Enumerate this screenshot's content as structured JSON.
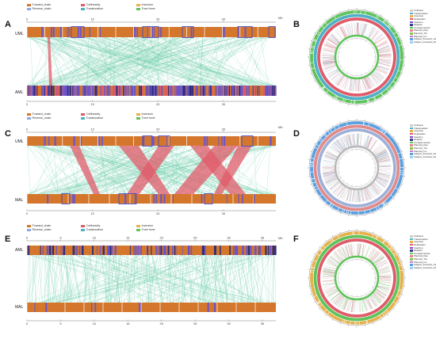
{
  "panels": {
    "A": "A",
    "B": "B",
    "C": "C",
    "D": "D",
    "E": "E",
    "F": "F"
  },
  "legend_items": [
    {
      "label": "Forward_chain",
      "color": "#d4772c"
    },
    {
      "label": "Reverse_chain",
      "color": "#8fa7e0"
    },
    {
      "label": "Collinearity",
      "color": "#e05b6a"
    },
    {
      "label": "Translocation",
      "color": "#4fb0c6"
    },
    {
      "label": "Inversion",
      "color": "#e6b04a"
    },
    {
      "label": "Tran+Inver",
      "color": "#5fc35a"
    }
  ],
  "rows": {
    "A_top": "UML",
    "A_bottom": "AML",
    "C_top": "UML",
    "C_bottom": "MAL",
    "E_top": "AML",
    "E_bottom": "MAL"
  },
  "ticks": {
    "A": [
      "0",
      "10",
      "20",
      "30"
    ],
    "C": [
      "0",
      "10",
      "20",
      "30"
    ],
    "E": [
      "0",
      "5",
      "10",
      "15",
      "20",
      "25",
      "30",
      "35"
    ]
  },
  "mb": "Mb",
  "circ_legend": {
    "B": [
      "Collinear",
      "Translocation",
      "Inversion",
      "Duplication",
      "Insertion",
      "Deletion",
      "Complemented",
      "Plasmid_Dup",
      "Plasmid_Tra",
      "Plasmid_Inv",
      "Subject_Forward_1/2",
      "Subject_Forward_2/2"
    ],
    "D": [
      "Collinear",
      "Translocation",
      "Inversion",
      "Duplication",
      "Insertion",
      "Deletion",
      "Complemented",
      "Plasmid_Dup",
      "Plasmid_Tra",
      "Plasmid_Inv",
      "Subject_Forward_1/2",
      "Subject_Forward_2/2"
    ],
    "F": [
      "Collinear",
      "Translocation",
      "Inversion",
      "Duplication",
      "Insertion",
      "Deletion",
      "Complemented",
      "Plasmid_Dup",
      "Plasmid_Tra",
      "Plasmid_Inv",
      "Subject_Forward_1/2",
      "Subject_Forward_2/2"
    ]
  },
  "circ_colors": [
    "#cfcfcf",
    "#4fb0c6",
    "#e6b04a",
    "#e05b6a",
    "#7c4dbe",
    "#3a3a8c",
    "#5fc35a",
    "#e08a8a",
    "#8fbf4f",
    "#c07ad0",
    "#5aa0e0",
    "#9ad0f0"
  ],
  "colors": {
    "forward": "#d4772c",
    "reverse": "#6b55c9",
    "collinear_link": "#5cc9a0",
    "red_link": "#e05b6a",
    "blue_box": "#3c3cc8"
  }
}
